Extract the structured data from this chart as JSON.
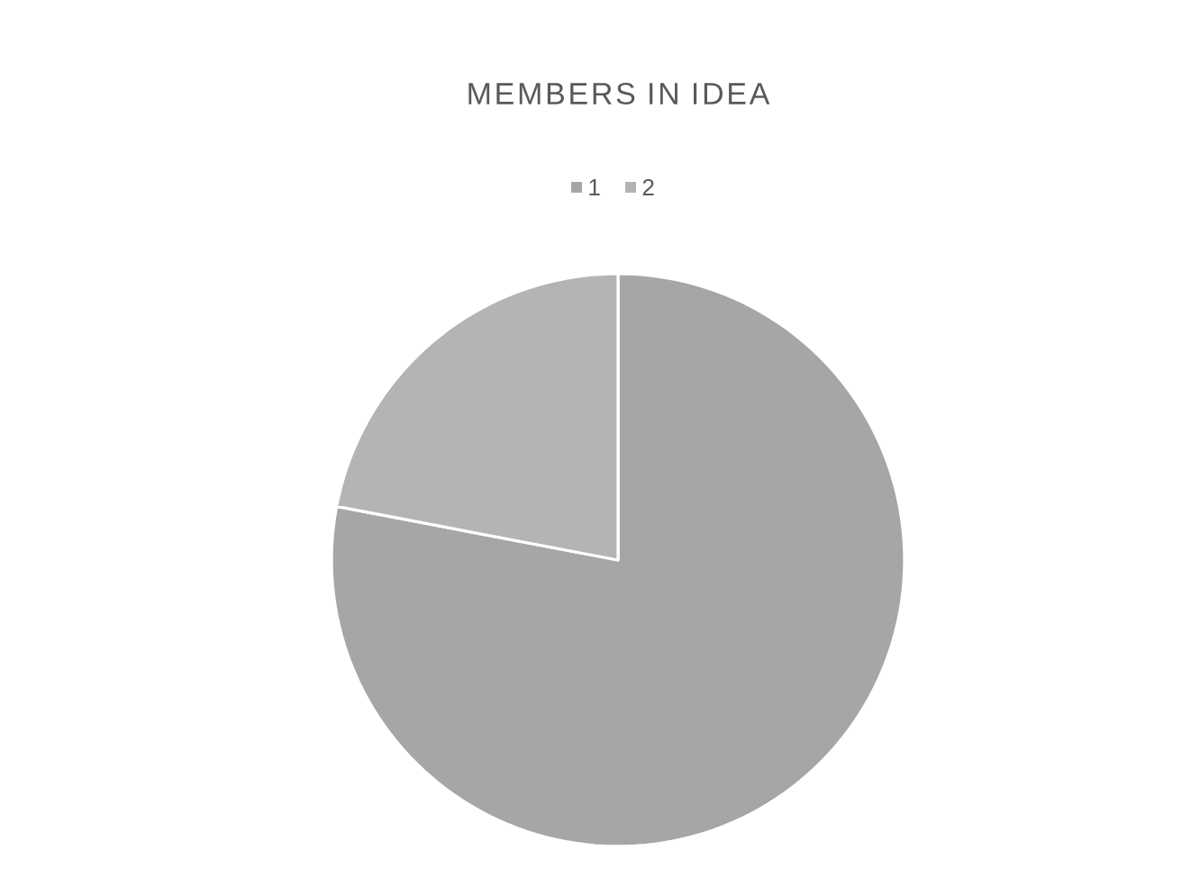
{
  "chart_data": {
    "type": "pie",
    "title": "MEMBERS IN IDEA",
    "categories": [
      "1",
      "2"
    ],
    "values": [
      78,
      22
    ],
    "colors": [
      "#a6a6a6",
      "#b4b4b4"
    ],
    "legend": "top"
  }
}
